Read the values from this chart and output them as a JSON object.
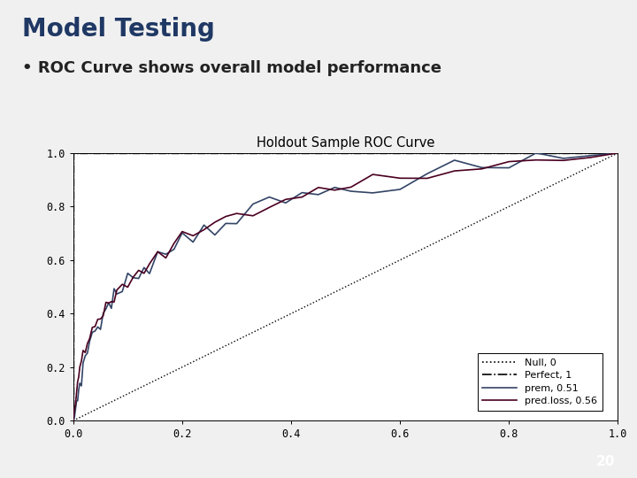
{
  "title": "Holdout Sample ROC Curve",
  "slide_title": "Model Testing",
  "bullet": "ROC Curve shows overall model performance",
  "xlabel_ticks": [
    0.0,
    0.2,
    0.4,
    0.6,
    0.8,
    1.0
  ],
  "ylabel_ticks": [
    0.0,
    0.2,
    0.4,
    0.6,
    0.8,
    1.0
  ],
  "legend_entries": [
    "Null, 0",
    "Perfect, 1",
    "prem, 0.51",
    "pred.loss, 0.56"
  ],
  "null_color": "black",
  "perfect_color": "black",
  "prem_color": "#334466",
  "predloss_color": "#4A0020",
  "background": "#f0f0f0",
  "slide_title_color": "#1F3864",
  "plot_bg": "#ffffff",
  "page_number": "20",
  "footer_bg": "#111111",
  "slide_bg": "#f0f0f0",
  "fpr_prem": [
    0.0,
    0.002,
    0.004,
    0.006,
    0.008,
    0.01,
    0.012,
    0.015,
    0.018,
    0.022,
    0.026,
    0.03,
    0.035,
    0.04,
    0.045,
    0.05,
    0.055,
    0.06,
    0.065,
    0.07,
    0.075,
    0.08,
    0.09,
    0.1,
    0.11,
    0.12,
    0.13,
    0.14,
    0.155,
    0.17,
    0.185,
    0.2,
    0.22,
    0.24,
    0.26,
    0.28,
    0.3,
    0.33,
    0.36,
    0.39,
    0.42,
    0.45,
    0.48,
    0.51,
    0.55,
    0.6,
    0.65,
    0.7,
    0.75,
    0.8,
    0.85,
    0.9,
    0.95,
    1.0
  ],
  "tpr_prem": [
    0.0,
    0.02,
    0.04,
    0.065,
    0.09,
    0.115,
    0.14,
    0.165,
    0.195,
    0.23,
    0.265,
    0.3,
    0.32,
    0.34,
    0.355,
    0.37,
    0.39,
    0.415,
    0.435,
    0.45,
    0.46,
    0.47,
    0.49,
    0.51,
    0.535,
    0.56,
    0.58,
    0.595,
    0.61,
    0.63,
    0.655,
    0.68,
    0.7,
    0.72,
    0.735,
    0.75,
    0.76,
    0.78,
    0.8,
    0.82,
    0.835,
    0.848,
    0.86,
    0.872,
    0.885,
    0.9,
    0.915,
    0.928,
    0.94,
    0.955,
    0.965,
    0.975,
    0.988,
    1.0
  ],
  "fpr_predloss": [
    0.0,
    0.002,
    0.004,
    0.006,
    0.008,
    0.01,
    0.012,
    0.015,
    0.018,
    0.022,
    0.026,
    0.03,
    0.035,
    0.04,
    0.045,
    0.05,
    0.055,
    0.06,
    0.065,
    0.07,
    0.075,
    0.08,
    0.09,
    0.1,
    0.11,
    0.12,
    0.13,
    0.14,
    0.155,
    0.17,
    0.185,
    0.2,
    0.22,
    0.24,
    0.26,
    0.28,
    0.3,
    0.33,
    0.36,
    0.39,
    0.42,
    0.45,
    0.48,
    0.51,
    0.55,
    0.6,
    0.65,
    0.7,
    0.75,
    0.8,
    0.85,
    0.9,
    0.95,
    1.0
  ],
  "tpr_predloss": [
    0.0,
    0.03,
    0.06,
    0.095,
    0.125,
    0.155,
    0.18,
    0.21,
    0.24,
    0.27,
    0.3,
    0.325,
    0.34,
    0.355,
    0.365,
    0.375,
    0.39,
    0.41,
    0.43,
    0.445,
    0.458,
    0.47,
    0.495,
    0.515,
    0.538,
    0.558,
    0.575,
    0.59,
    0.61,
    0.632,
    0.655,
    0.678,
    0.7,
    0.72,
    0.738,
    0.755,
    0.768,
    0.788,
    0.808,
    0.825,
    0.84,
    0.854,
    0.866,
    0.878,
    0.892,
    0.907,
    0.92,
    0.933,
    0.944,
    0.957,
    0.967,
    0.977,
    0.989,
    1.0
  ]
}
